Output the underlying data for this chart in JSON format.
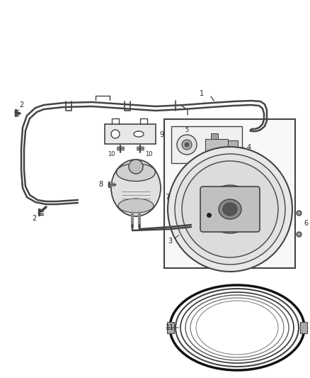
{
  "bg_color": "#ffffff",
  "line_color": "#444444",
  "dark_color": "#222222",
  "gray1": "#cccccc",
  "gray2": "#aaaaaa",
  "gray3": "#888888",
  "gray4": "#666666",
  "fig_w": 4.38,
  "fig_h": 5.33,
  "dpi": 100
}
